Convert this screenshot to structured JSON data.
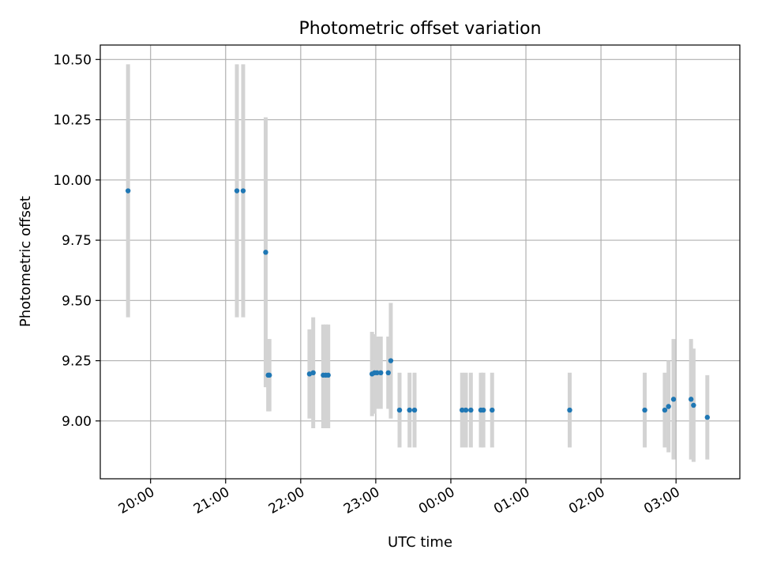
{
  "chart_data": {
    "type": "scatter",
    "title": "Photometric offset variation",
    "xlabel": "UTC time",
    "ylabel": "Photometric offset",
    "x_ticks": [
      "20:00",
      "21:00",
      "22:00",
      "23:00",
      "00:00",
      "01:00",
      "02:00",
      "03:00"
    ],
    "y_ticks": [
      "9.00",
      "9.25",
      "9.50",
      "9.75",
      "10.00",
      "10.25",
      "10.50"
    ],
    "xlim_hours": [
      19.33,
      27.85
    ],
    "ylim": [
      8.76,
      10.56
    ],
    "grid": true,
    "colors": {
      "point": "#1f77b4",
      "errorbar": "#d3d3d3",
      "grid": "#b0b0b0",
      "axes": "#000000"
    },
    "points": [
      {
        "t": "19:42",
        "y": 9.955,
        "lo": 9.43,
        "hi": 10.48
      },
      {
        "t": "21:09",
        "y": 9.955,
        "lo": 9.43,
        "hi": 10.48
      },
      {
        "t": "21:14",
        "y": 9.955,
        "lo": 9.43,
        "hi": 10.48
      },
      {
        "t": "21:32",
        "y": 9.7,
        "lo": 9.14,
        "hi": 10.26
      },
      {
        "t": "21:34",
        "y": 9.19,
        "lo": 9.04,
        "hi": 9.34
      },
      {
        "t": "21:35",
        "y": 9.19,
        "lo": 9.04,
        "hi": 9.34
      },
      {
        "t": "22:07",
        "y": 9.195,
        "lo": 9.01,
        "hi": 9.38
      },
      {
        "t": "22:10",
        "y": 9.2,
        "lo": 8.97,
        "hi": 9.43
      },
      {
        "t": "22:18",
        "y": 9.19,
        "lo": 8.97,
        "hi": 9.4
      },
      {
        "t": "22:20",
        "y": 9.19,
        "lo": 8.97,
        "hi": 9.4
      },
      {
        "t": "22:22",
        "y": 9.19,
        "lo": 8.97,
        "hi": 9.4
      },
      {
        "t": "22:57",
        "y": 9.195,
        "lo": 9.02,
        "hi": 9.37
      },
      {
        "t": "22:59",
        "y": 9.2,
        "lo": 9.03,
        "hi": 9.36
      },
      {
        "t": "23:01",
        "y": 9.2,
        "lo": 9.05,
        "hi": 9.35
      },
      {
        "t": "23:04",
        "y": 9.2,
        "lo": 9.05,
        "hi": 9.35
      },
      {
        "t": "23:10",
        "y": 9.2,
        "lo": 9.05,
        "hi": 9.35
      },
      {
        "t": "23:12",
        "y": 9.25,
        "lo": 9.01,
        "hi": 9.49
      },
      {
        "t": "23:19",
        "y": 9.045,
        "lo": 8.89,
        "hi": 9.2
      },
      {
        "t": "23:27",
        "y": 9.045,
        "lo": 8.89,
        "hi": 9.2
      },
      {
        "t": "23:31",
        "y": 9.045,
        "lo": 8.89,
        "hi": 9.2
      },
      {
        "t": "00:09",
        "y": 9.045,
        "lo": 8.89,
        "hi": 9.2
      },
      {
        "t": "00:12",
        "y": 9.045,
        "lo": 8.89,
        "hi": 9.2
      },
      {
        "t": "00:16",
        "y": 9.045,
        "lo": 8.89,
        "hi": 9.2
      },
      {
        "t": "00:24",
        "y": 9.045,
        "lo": 8.89,
        "hi": 9.2
      },
      {
        "t": "00:26",
        "y": 9.045,
        "lo": 8.89,
        "hi": 9.2
      },
      {
        "t": "00:33",
        "y": 9.045,
        "lo": 8.89,
        "hi": 9.2
      },
      {
        "t": "01:35",
        "y": 9.045,
        "lo": 8.89,
        "hi": 9.2
      },
      {
        "t": "02:35",
        "y": 9.045,
        "lo": 8.89,
        "hi": 9.2
      },
      {
        "t": "02:51",
        "y": 9.045,
        "lo": 8.89,
        "hi": 9.2
      },
      {
        "t": "02:54",
        "y": 9.06,
        "lo": 8.87,
        "hi": 9.25
      },
      {
        "t": "02:58",
        "y": 9.09,
        "lo": 8.84,
        "hi": 9.34
      },
      {
        "t": "03:12",
        "y": 9.09,
        "lo": 8.84,
        "hi": 9.34
      },
      {
        "t": "03:14",
        "y": 9.065,
        "lo": 8.83,
        "hi": 9.3
      },
      {
        "t": "03:25",
        "y": 9.015,
        "lo": 8.84,
        "hi": 9.19
      }
    ]
  }
}
